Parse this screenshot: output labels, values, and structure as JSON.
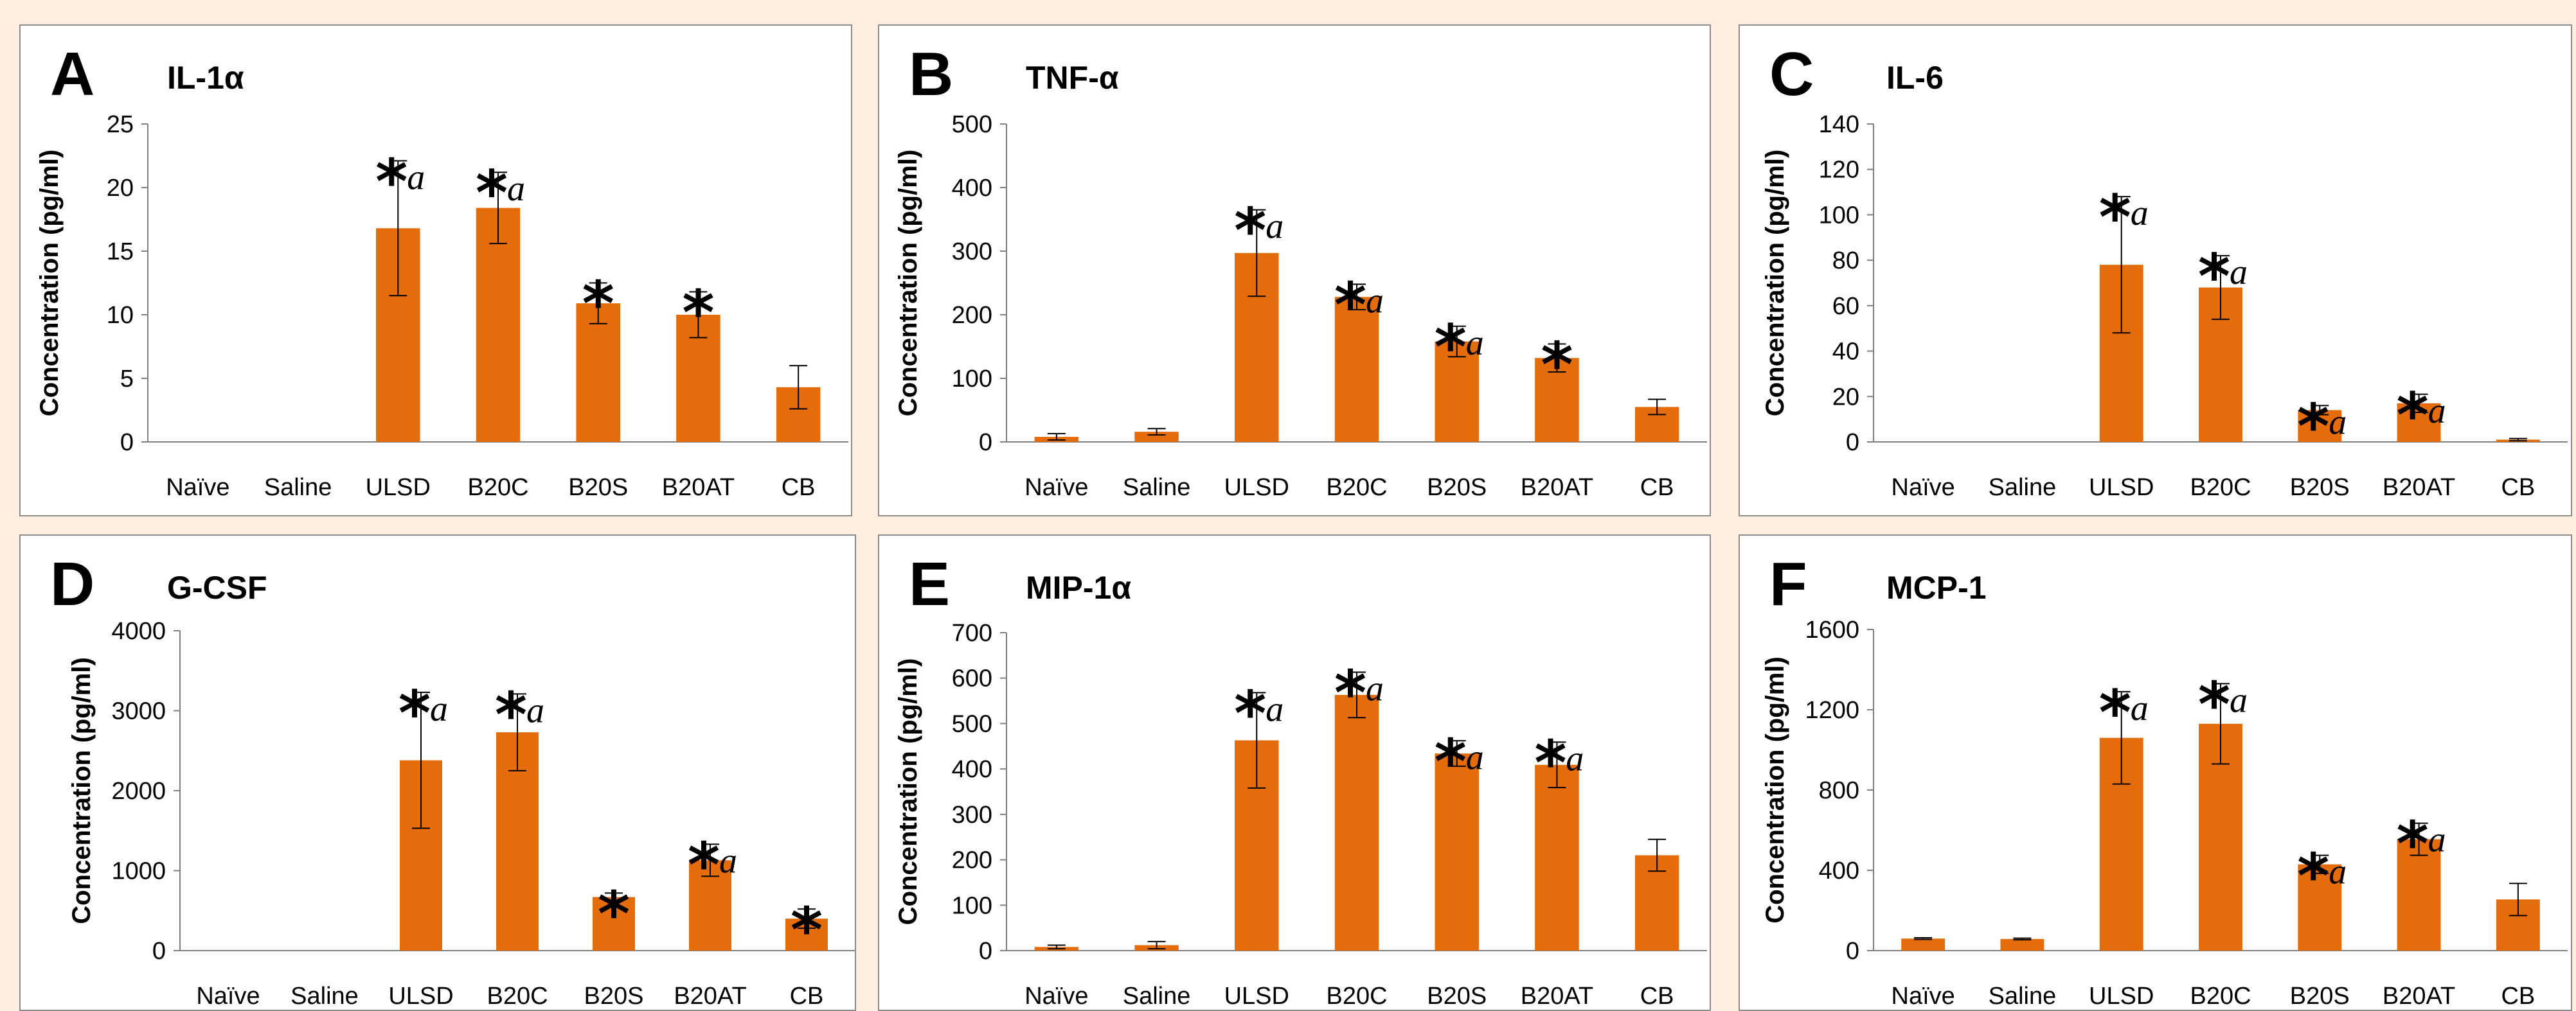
{
  "chart_data": [
    {
      "panel": "A",
      "type": "bar",
      "title": "IL-1α",
      "ylabel": "Concentration (pg/ml)",
      "xlabel": "",
      "categories": [
        "Naïve",
        "Saline",
        "ULSD",
        "B20C",
        "B20S",
        "B20AT",
        "CB"
      ],
      "values": [
        0,
        0,
        16.8,
        18.4,
        10.9,
        10.0,
        4.3
      ],
      "errors": [
        0,
        0,
        5.3,
        2.8,
        1.6,
        1.8,
        1.7
      ],
      "significance": [
        "",
        "",
        "*a",
        "*a",
        "*",
        "*",
        ""
      ],
      "ylim": [
        0,
        25
      ],
      "yticks": [
        0,
        5,
        10,
        15,
        20,
        25
      ],
      "color": "#e46c0a",
      "grid": false
    },
    {
      "panel": "B",
      "type": "bar",
      "title": "TNF-α",
      "ylabel": "Concentration (pg/ml)",
      "xlabel": "",
      "categories": [
        "Naïve",
        "Saline",
        "ULSD",
        "B20C",
        "B20S",
        "B20AT",
        "CB"
      ],
      "values": [
        8,
        16,
        297,
        228,
        158,
        132,
        55
      ],
      "errors": [
        5,
        5,
        68,
        20,
        24,
        22,
        12
      ],
      "significance": [
        "",
        "",
        "*a",
        "*a",
        "*a",
        "*",
        ""
      ],
      "ylim": [
        0,
        500
      ],
      "yticks": [
        0,
        100,
        200,
        300,
        400,
        500
      ],
      "color": "#e46c0a",
      "grid": false
    },
    {
      "panel": "C",
      "type": "bar",
      "title": "IL-6",
      "ylabel": "Concentration (pg/ml)",
      "xlabel": "",
      "categories": [
        "Naïve",
        "Saline",
        "ULSD",
        "B20C",
        "B20S",
        "B20AT",
        "CB"
      ],
      "values": [
        0,
        0,
        78,
        68,
        14,
        17,
        1
      ],
      "errors": [
        0,
        0,
        30,
        14,
        2,
        4,
        0.5
      ],
      "significance": [
        "",
        "",
        "*a",
        "*a",
        "*a",
        "*a",
        ""
      ],
      "ylim": [
        0,
        140
      ],
      "yticks": [
        0,
        20,
        40,
        60,
        80,
        100,
        120,
        140
      ],
      "color": "#e46c0a",
      "grid": false
    },
    {
      "panel": "D",
      "type": "bar",
      "title": "G-CSF",
      "ylabel": "Concentration (pg/ml)",
      "xlabel": "",
      "categories": [
        "Naïve",
        "Saline",
        "ULSD",
        "B20C",
        "B20S",
        "B20AT",
        "CB"
      ],
      "values": [
        0,
        0,
        2380,
        2730,
        670,
        1130,
        400
      ],
      "errors": [
        0,
        0,
        850,
        480,
        50,
        200,
        120
      ],
      "significance": [
        "",
        "",
        "*a",
        "*a",
        "*",
        "*a",
        "*"
      ],
      "ylim": [
        0,
        4000
      ],
      "yticks": [
        0,
        1000,
        2000,
        3000,
        4000
      ],
      "color": "#e46c0a",
      "grid": false
    },
    {
      "panel": "E",
      "type": "bar",
      "title": "MIP-1α",
      "ylabel": "Concentration (pg/ml)",
      "xlabel": "",
      "categories": [
        "Naïve",
        "Saline",
        "ULSD",
        "B20C",
        "B20S",
        "B20AT",
        "CB"
      ],
      "values": [
        8,
        12,
        463,
        563,
        434,
        409,
        210
      ],
      "errors": [
        4,
        8,
        105,
        50,
        28,
        50,
        35
      ],
      "significance": [
        "",
        "",
        "*a",
        "*a",
        "*a",
        "*a",
        ""
      ],
      "ylim": [
        0,
        700
      ],
      "yticks": [
        0,
        100,
        200,
        300,
        400,
        500,
        600,
        700
      ],
      "color": "#e46c0a",
      "grid": false
    },
    {
      "panel": "F",
      "type": "bar",
      "title": "MCP-1",
      "ylabel": "Concentration (pg/ml)",
      "xlabel": "",
      "categories": [
        "Naïve",
        "Saline",
        "ULSD",
        "B20C",
        "B20S",
        "B20AT",
        "CB"
      ],
      "values": [
        60,
        58,
        1060,
        1130,
        430,
        555,
        255
      ],
      "errors": [
        4,
        4,
        230,
        200,
        45,
        80,
        80
      ],
      "significance": [
        "",
        "",
        "*a",
        "*a",
        "*a",
        "*a",
        ""
      ],
      "ylim": [
        0,
        1600
      ],
      "yticks": [
        0,
        400,
        800,
        1200,
        1600
      ],
      "color": "#e46c0a",
      "grid": false
    }
  ]
}
